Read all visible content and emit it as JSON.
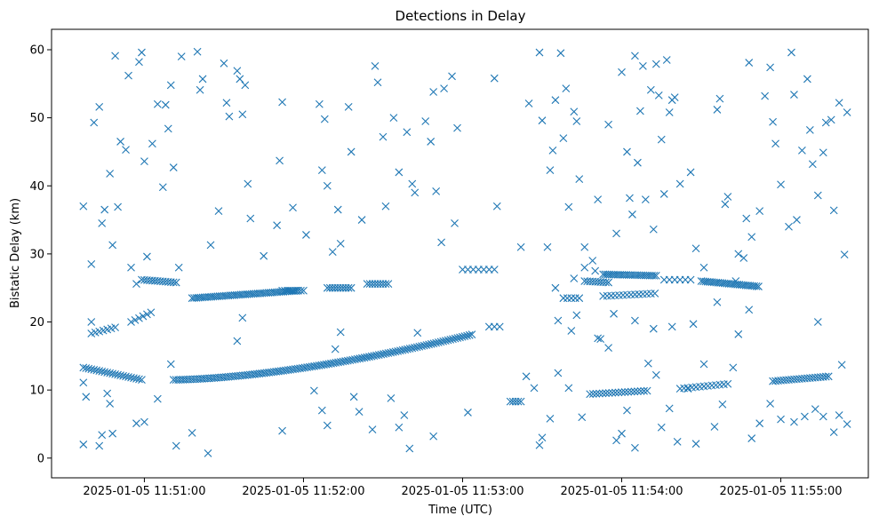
{
  "chart_data": {
    "type": "scatter",
    "title": "Detections in Delay",
    "xlabel": "Time (UTC)",
    "ylabel": "Bistatic Delay (km)",
    "xlim": [
      "2025-01-05 11:50:25",
      "2025-01-05 11:55:33"
    ],
    "ylim": [
      -2.9,
      63
    ],
    "x_ticks": [
      "2025-01-05 11:51:00",
      "2025-01-05 11:52:00",
      "2025-01-05 11:53:00",
      "2025-01-05 11:54:00",
      "2025-01-05 11:55:00"
    ],
    "y_ticks": [
      0,
      10,
      20,
      30,
      40,
      50,
      60
    ],
    "marker": "x",
    "color": "#1f77b4",
    "grid": false,
    "tracks": [
      {
        "from": "2025-01-05 11:50:37",
        "to": "2025-01-05 11:50:59",
        "from_y": 13.3,
        "to_y": 11.5,
        "step_s": 1
      },
      {
        "from": "2025-01-05 11:51:11",
        "to": "2025-01-05 11:53:04",
        "from_y": 11.5,
        "to_y": 18.2,
        "curve": 1.6,
        "step_s": 0.9
      },
      {
        "from": "2025-01-05 11:50:40",
        "to": "2025-01-05 11:50:50",
        "from_y": 18.3,
        "to_y": 19.3,
        "step_s": 1.5
      },
      {
        "from": "2025-01-05 11:50:55",
        "to": "2025-01-05 11:51:03",
        "from_y": 20.0,
        "to_y": 21.5,
        "step_s": 1.5
      },
      {
        "from": "2025-01-05 11:50:59",
        "to": "2025-01-05 11:51:12",
        "from_y": 26.2,
        "to_y": 25.8,
        "step_s": 1
      },
      {
        "from": "2025-01-05 11:51:18",
        "to": "2025-01-05 11:51:58",
        "from_y": 23.5,
        "to_y": 24.6,
        "step_s": 0.8
      },
      {
        "from": "2025-01-05 11:51:52",
        "to": "2025-01-05 11:52:00",
        "from_y": 24.6,
        "to_y": 24.6,
        "step_s": 1
      },
      {
        "from": "2025-01-05 11:52:09",
        "to": "2025-01-05 11:52:18",
        "from_y": 25.0,
        "to_y": 25.0,
        "step_s": 1
      },
      {
        "from": "2025-01-05 11:52:24",
        "to": "2025-01-05 11:52:32",
        "from_y": 25.6,
        "to_y": 25.6,
        "step_s": 1
      },
      {
        "from": "2025-01-05 11:53:00",
        "to": "2025-01-05 11:53:12",
        "from_y": 27.7,
        "to_y": 27.7,
        "step_s": 2
      },
      {
        "from": "2025-01-05 11:53:10",
        "to": "2025-01-05 11:53:15",
        "from_y": 19.3,
        "to_y": 19.3,
        "step_s": 2
      },
      {
        "from": "2025-01-05 11:53:18",
        "to": "2025-01-05 11:53:22",
        "from_y": 8.3,
        "to_y": 8.3,
        "step_s": 1
      },
      {
        "from": "2025-01-05 11:53:38",
        "to": "2025-01-05 11:53:45",
        "from_y": 23.5,
        "to_y": 23.5,
        "step_s": 1.5
      },
      {
        "from": "2025-01-05 11:53:46",
        "to": "2025-01-05 11:53:55",
        "from_y": 26.0,
        "to_y": 25.8,
        "step_s": 1
      },
      {
        "from": "2025-01-05 11:53:53",
        "to": "2025-01-05 11:54:13",
        "from_y": 27.0,
        "to_y": 26.8,
        "step_s": 0.8
      },
      {
        "from": "2025-01-05 11:53:53",
        "to": "2025-01-05 11:54:13",
        "from_y": 23.8,
        "to_y": 24.2,
        "step_s": 1.5
      },
      {
        "from": "2025-01-05 11:53:48",
        "to": "2025-01-05 11:54:10",
        "from_y": 9.4,
        "to_y": 9.9,
        "step_s": 1.2
      },
      {
        "from": "2025-01-05 11:54:16",
        "to": "2025-01-05 11:54:26",
        "from_y": 26.2,
        "to_y": 26.2,
        "step_s": 2
      },
      {
        "from": "2025-01-05 11:54:22",
        "to": "2025-01-05 11:54:40",
        "from_y": 10.2,
        "to_y": 10.9,
        "step_s": 1.5
      },
      {
        "from": "2025-01-05 11:54:30",
        "to": "2025-01-05 11:54:52",
        "from_y": 26.0,
        "to_y": 25.2,
        "step_s": 0.8
      },
      {
        "from": "2025-01-05 11:54:57",
        "to": "2025-01-05 11:55:18",
        "from_y": 11.3,
        "to_y": 12.0,
        "step_s": 1
      }
    ],
    "points": [
      [
        "11:50:37",
        37.0
      ],
      [
        "11:50:40",
        20.0
      ],
      [
        "11:50:40",
        28.5
      ],
      [
        "11:50:41",
        49.3
      ],
      [
        "11:50:43",
        51.6
      ],
      [
        "11:50:44",
        34.5
      ],
      [
        "11:50:45",
        36.5
      ],
      [
        "11:50:47",
        41.8
      ],
      [
        "11:50:48",
        31.3
      ],
      [
        "11:50:49",
        59.1
      ],
      [
        "11:50:50",
        36.9
      ],
      [
        "11:50:51",
        46.5
      ],
      [
        "11:50:53",
        45.3
      ],
      [
        "11:50:54",
        56.2
      ],
      [
        "11:50:55",
        28.0
      ],
      [
        "11:50:57",
        25.6
      ],
      [
        "11:50:58",
        58.2
      ],
      [
        "11:50:59",
        59.6
      ],
      [
        "11:51:00",
        43.6
      ],
      [
        "11:51:01",
        29.6
      ],
      [
        "11:51:03",
        46.2
      ],
      [
        "11:51:05",
        52.0
      ],
      [
        "11:51:07",
        39.8
      ],
      [
        "11:51:08",
        51.9
      ],
      [
        "11:51:09",
        48.4
      ],
      [
        "11:51:10",
        54.8
      ],
      [
        "11:51:11",
        42.7
      ],
      [
        "11:51:13",
        28.0
      ],
      [
        "11:51:14",
        59.0
      ],
      [
        "11:51:20",
        59.7
      ],
      [
        "11:51:21",
        54.1
      ],
      [
        "11:51:22",
        55.7
      ],
      [
        "11:51:25",
        31.3
      ],
      [
        "11:51:28",
        36.3
      ],
      [
        "11:51:30",
        58.0
      ],
      [
        "11:51:31",
        52.2
      ],
      [
        "11:51:32",
        50.2
      ],
      [
        "11:51:35",
        56.9
      ],
      [
        "11:51:36",
        55.7
      ],
      [
        "11:51:37",
        50.5
      ],
      [
        "11:51:38",
        54.8
      ],
      [
        "11:51:39",
        40.3
      ],
      [
        "11:51:40",
        35.2
      ],
      [
        "11:51:45",
        29.7
      ],
      [
        "11:51:50",
        34.2
      ],
      [
        "11:51:51",
        43.7
      ],
      [
        "11:51:52",
        52.3
      ],
      [
        "11:51:56",
        36.8
      ],
      [
        "11:52:01",
        32.8
      ],
      [
        "11:52:06",
        52.0
      ],
      [
        "11:52:07",
        42.3
      ],
      [
        "11:52:08",
        49.8
      ],
      [
        "11:52:09",
        40.0
      ],
      [
        "11:52:11",
        30.3
      ],
      [
        "11:52:13",
        36.5
      ],
      [
        "11:52:14",
        31.5
      ],
      [
        "11:52:17",
        51.6
      ],
      [
        "11:52:18",
        45.0
      ],
      [
        "11:52:22",
        35.0
      ],
      [
        "11:52:27",
        57.6
      ],
      [
        "11:52:28",
        55.2
      ],
      [
        "11:52:30",
        47.2
      ],
      [
        "11:52:31",
        37.0
      ],
      [
        "11:52:34",
        50.0
      ],
      [
        "11:52:36",
        42.0
      ],
      [
        "11:52:39",
        47.9
      ],
      [
        "11:52:41",
        40.3
      ],
      [
        "11:52:42",
        39.0
      ],
      [
        "11:52:46",
        49.5
      ],
      [
        "11:52:48",
        46.5
      ],
      [
        "11:52:49",
        53.8
      ],
      [
        "11:52:50",
        39.2
      ],
      [
        "11:52:52",
        31.7
      ],
      [
        "11:52:53",
        54.3
      ],
      [
        "11:52:56",
        56.1
      ],
      [
        "11:52:57",
        34.5
      ],
      [
        "11:52:58",
        48.5
      ],
      [
        "11:53:12",
        55.8
      ],
      [
        "11:53:13",
        37.0
      ],
      [
        "11:53:22",
        31.0
      ],
      [
        "11:53:25",
        52.1
      ],
      [
        "11:53:29",
        59.6
      ],
      [
        "11:53:30",
        49.6
      ],
      [
        "11:53:32",
        31.0
      ],
      [
        "11:53:33",
        42.3
      ],
      [
        "11:53:34",
        45.2
      ],
      [
        "11:53:35",
        52.6
      ],
      [
        "11:53:37",
        59.5
      ],
      [
        "11:53:38",
        47.0
      ],
      [
        "11:53:39",
        54.3
      ],
      [
        "11:53:40",
        36.9
      ],
      [
        "11:53:42",
        50.9
      ],
      [
        "11:53:43",
        49.5
      ],
      [
        "11:53:44",
        41.0
      ],
      [
        "11:53:46",
        31.0
      ],
      [
        "11:53:49",
        29.0
      ],
      [
        "11:53:51",
        38.0
      ],
      [
        "11:53:55",
        49.0
      ],
      [
        "11:53:58",
        33.0
      ],
      [
        "11:54:00",
        56.7
      ],
      [
        "11:54:02",
        45.0
      ],
      [
        "11:54:03",
        38.2
      ],
      [
        "11:54:04",
        35.8
      ],
      [
        "11:54:05",
        59.1
      ],
      [
        "11:54:06",
        43.4
      ],
      [
        "11:54:07",
        51.0
      ],
      [
        "11:54:08",
        57.6
      ],
      [
        "11:54:09",
        38.0
      ],
      [
        "11:54:11",
        54.1
      ],
      [
        "11:54:12",
        33.6
      ],
      [
        "11:54:13",
        57.9
      ],
      [
        "11:54:14",
        53.3
      ],
      [
        "11:54:15",
        46.8
      ],
      [
        "11:54:16",
        38.8
      ],
      [
        "11:54:17",
        58.5
      ],
      [
        "11:54:18",
        50.8
      ],
      [
        "11:54:19",
        52.6
      ],
      [
        "11:54:20",
        53.0
      ],
      [
        "11:54:22",
        40.3
      ],
      [
        "11:54:26",
        42.0
      ],
      [
        "11:54:28",
        30.8
      ],
      [
        "11:54:31",
        28.0
      ],
      [
        "11:54:36",
        51.2
      ],
      [
        "11:54:37",
        52.8
      ],
      [
        "11:54:39",
        37.3
      ],
      [
        "11:54:40",
        38.4
      ],
      [
        "11:54:44",
        30.0
      ],
      [
        "11:54:46",
        29.4
      ],
      [
        "11:54:47",
        35.2
      ],
      [
        "11:54:48",
        58.1
      ],
      [
        "11:54:52",
        36.3
      ],
      [
        "11:54:54",
        53.2
      ],
      [
        "11:54:56",
        57.4
      ],
      [
        "11:54:57",
        49.4
      ],
      [
        "11:54:58",
        46.2
      ],
      [
        "11:55:00",
        40.2
      ],
      [
        "11:55:03",
        34.0
      ],
      [
        "11:55:04",
        59.6
      ],
      [
        "11:55:05",
        53.4
      ],
      [
        "11:55:06",
        35.0
      ],
      [
        "11:55:08",
        45.2
      ],
      [
        "11:55:10",
        55.7
      ],
      [
        "11:55:11",
        48.2
      ],
      [
        "11:55:12",
        43.2
      ],
      [
        "11:55:14",
        38.6
      ],
      [
        "11:55:16",
        44.9
      ],
      [
        "11:55:17",
        49.3
      ],
      [
        "11:55:19",
        49.7
      ],
      [
        "11:55:20",
        36.4
      ],
      [
        "11:55:22",
        52.2
      ],
      [
        "11:55:24",
        29.9
      ],
      [
        "11:55:25",
        50.8
      ],
      [
        "11:50:37",
        2.0
      ],
      [
        "11:50:37",
        11.1
      ],
      [
        "11:50:38",
        9.0
      ],
      [
        "11:50:43",
        1.8
      ],
      [
        "11:50:44",
        3.4
      ],
      [
        "11:50:46",
        9.5
      ],
      [
        "11:50:47",
        8.0
      ],
      [
        "11:50:48",
        3.6
      ],
      [
        "11:50:57",
        5.1
      ],
      [
        "11:51:00",
        5.3
      ],
      [
        "11:51:05",
        8.7
      ],
      [
        "11:51:10",
        13.8
      ],
      [
        "11:51:12",
        1.8
      ],
      [
        "11:51:18",
        3.7
      ],
      [
        "11:51:24",
        0.7
      ],
      [
        "11:51:35",
        17.2
      ],
      [
        "11:51:37",
        20.6
      ],
      [
        "11:51:52",
        4.0
      ],
      [
        "11:52:04",
        9.9
      ],
      [
        "11:52:07",
        7.0
      ],
      [
        "11:52:09",
        4.8
      ],
      [
        "11:52:12",
        16.0
      ],
      [
        "11:52:14",
        18.5
      ],
      [
        "11:52:19",
        9.0
      ],
      [
        "11:52:21",
        6.8
      ],
      [
        "11:52:26",
        4.2
      ],
      [
        "11:52:33",
        8.8
      ],
      [
        "11:52:36",
        4.5
      ],
      [
        "11:52:38",
        6.3
      ],
      [
        "11:52:40",
        1.4
      ],
      [
        "11:52:43",
        18.4
      ],
      [
        "11:52:49",
        3.2
      ],
      [
        "11:53:02",
        6.7
      ],
      [
        "11:53:24",
        12.0
      ],
      [
        "11:53:27",
        10.3
      ],
      [
        "11:53:29",
        1.9
      ],
      [
        "11:53:30",
        3.0
      ],
      [
        "11:53:33",
        5.8
      ],
      [
        "11:53:36",
        12.5
      ],
      [
        "11:53:40",
        10.3
      ],
      [
        "11:53:45",
        6.0
      ],
      [
        "11:53:52",
        17.5
      ],
      [
        "11:53:55",
        16.2
      ],
      [
        "11:53:58",
        2.6
      ],
      [
        "11:54:00",
        3.6
      ],
      [
        "11:54:02",
        7.0
      ],
      [
        "11:54:05",
        1.5
      ],
      [
        "11:54:10",
        13.9
      ],
      [
        "11:54:13",
        12.2
      ],
      [
        "11:54:15",
        4.5
      ],
      [
        "11:54:18",
        7.3
      ],
      [
        "11:54:21",
        2.4
      ],
      [
        "11:54:25",
        10.2
      ],
      [
        "11:54:28",
        2.1
      ],
      [
        "11:54:31",
        13.8
      ],
      [
        "11:54:35",
        4.6
      ],
      [
        "11:54:38",
        7.9
      ],
      [
        "11:54:42",
        13.3
      ],
      [
        "11:54:49",
        2.9
      ],
      [
        "11:54:52",
        5.1
      ],
      [
        "11:54:56",
        8.0
      ],
      [
        "11:55:00",
        5.7
      ],
      [
        "11:55:05",
        5.3
      ],
      [
        "11:55:09",
        6.1
      ],
      [
        "11:55:13",
        7.2
      ],
      [
        "11:55:16",
        6.1
      ],
      [
        "11:55:20",
        3.8
      ],
      [
        "11:55:22",
        6.3
      ],
      [
        "11:55:25",
        5.0
      ],
      [
        "11:55:23",
        13.7
      ],
      [
        "11:53:36",
        20.2
      ],
      [
        "11:53:41",
        18.7
      ],
      [
        "11:53:43",
        21.0
      ],
      [
        "11:53:51",
        17.6
      ],
      [
        "11:53:57",
        21.2
      ],
      [
        "11:54:05",
        20.2
      ],
      [
        "11:54:12",
        19.0
      ],
      [
        "11:54:19",
        19.3
      ],
      [
        "11:54:27",
        19.7
      ],
      [
        "11:54:36",
        22.9
      ],
      [
        "11:54:44",
        18.2
      ],
      [
        "11:54:48",
        21.8
      ],
      [
        "11:55:14",
        20.0
      ],
      [
        "11:54:49",
        32.5
      ],
      [
        "11:54:43",
        26.0
      ],
      [
        "11:53:46",
        28.0
      ],
      [
        "11:53:50",
        27.5
      ],
      [
        "11:53:42",
        26.4
      ],
      [
        "11:53:35",
        25.0
      ]
    ]
  }
}
